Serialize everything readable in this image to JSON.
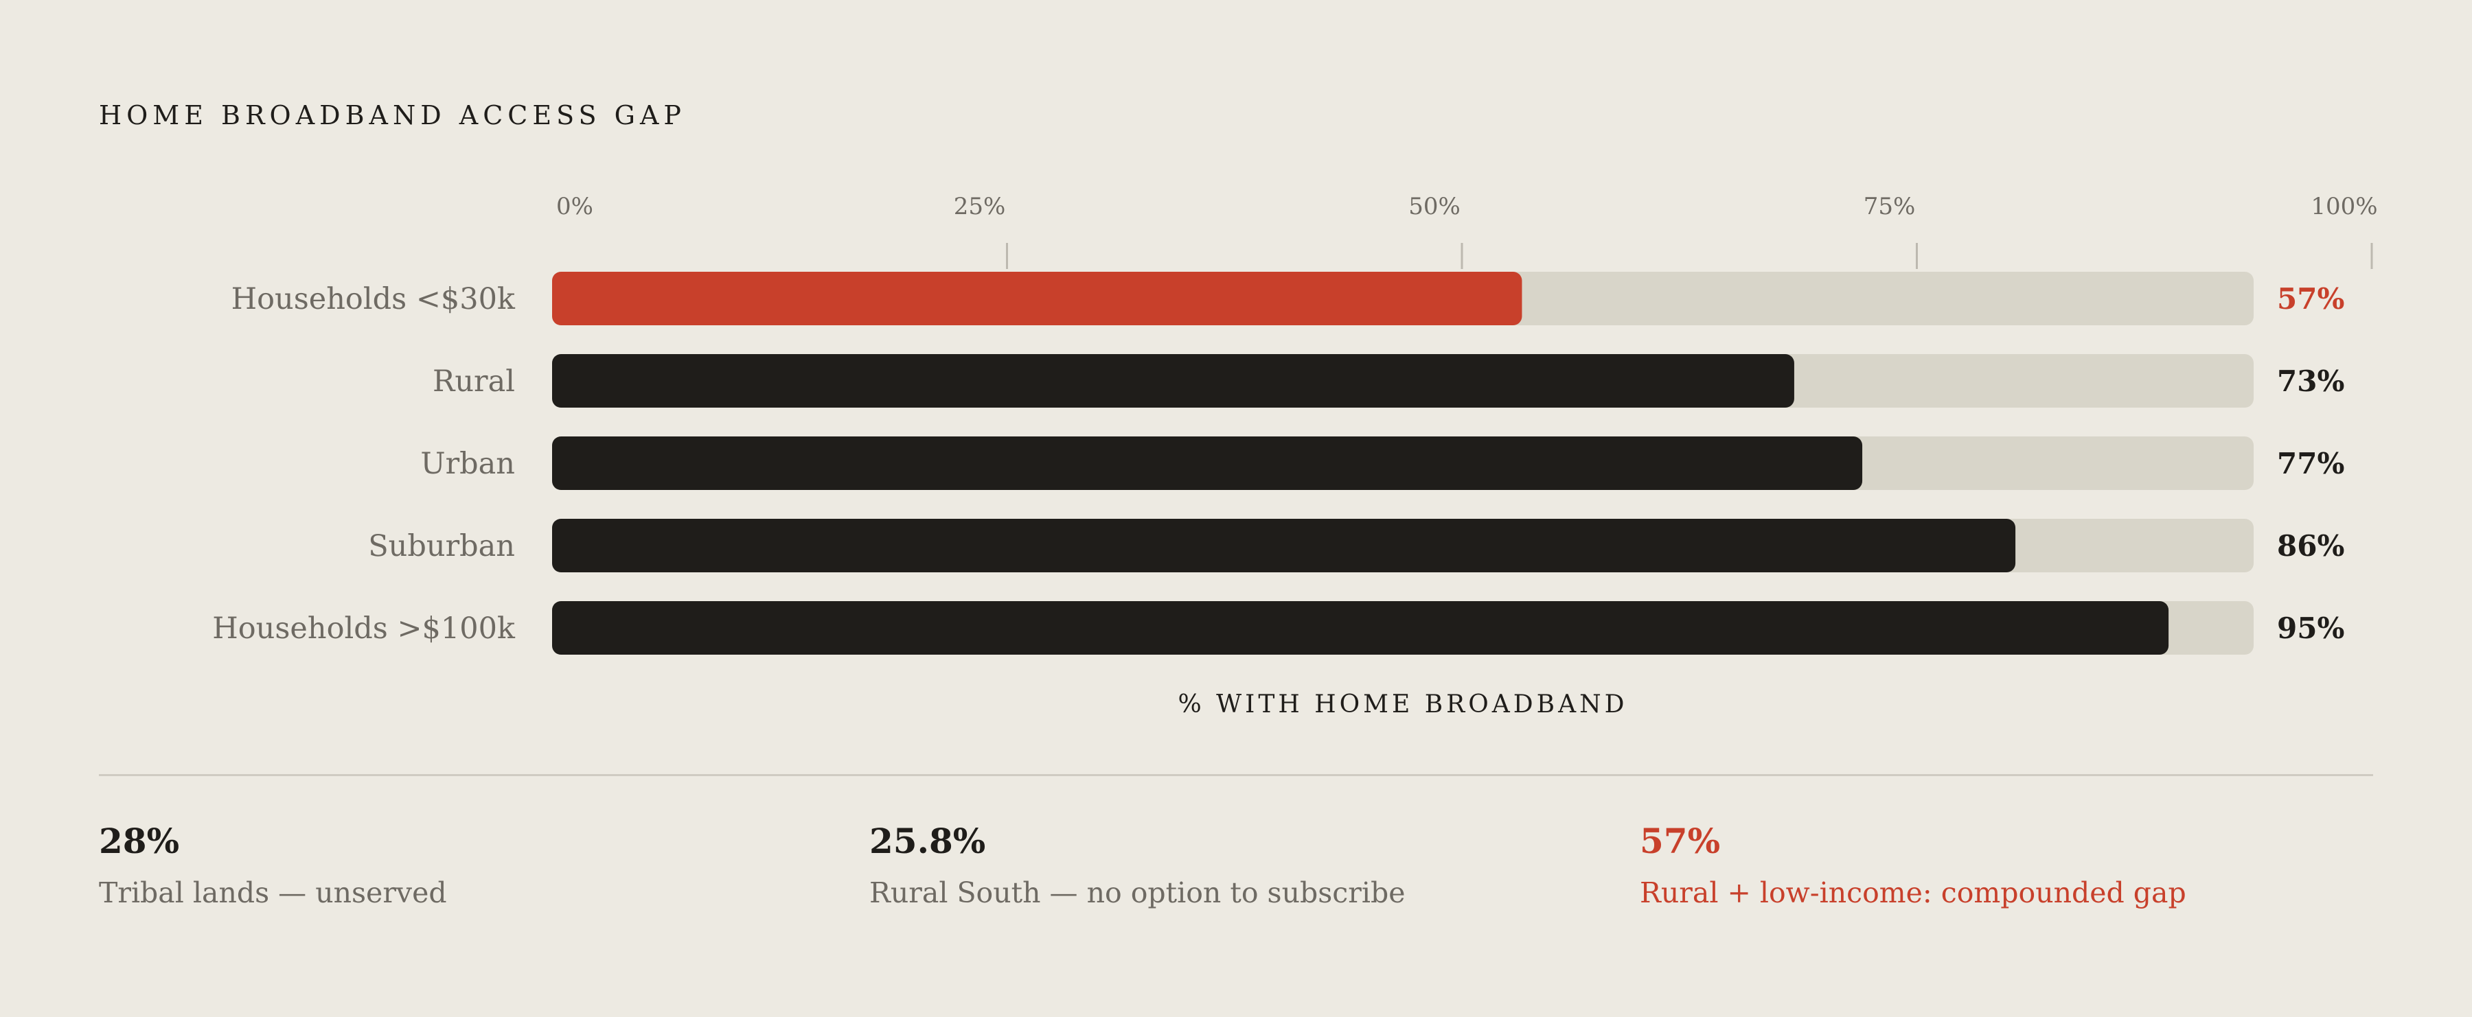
{
  "title": "HOME BROADBAND ACCESS GAP",
  "colors": {
    "background": "#edeae2",
    "track": "#d8d5c9",
    "bar_default": "#1f1d1a",
    "bar_highlight": "#c8402b",
    "text_muted": "#6e6a63",
    "text_dark": "#1f1d1a"
  },
  "chart_data": {
    "type": "bar",
    "orientation": "horizontal",
    "categories": [
      "Households <$30k",
      "Rural",
      "Urban",
      "Suburban",
      "Households >$100k"
    ],
    "values": [
      57,
      73,
      77,
      86,
      95
    ],
    "value_labels": [
      "57%",
      "73%",
      "77%",
      "86%",
      "95%"
    ],
    "highlight_index": 0,
    "xlim": [
      0,
      100
    ],
    "xticks": [
      0,
      25,
      50,
      75,
      100
    ],
    "xtick_labels": [
      "0%",
      "25%",
      "50%",
      "75%",
      "100%"
    ],
    "xlabel": "% WITH HOME BROADBAND",
    "ylabel": "",
    "grid": false,
    "tick_position": "top"
  },
  "stats": [
    {
      "value": "28%",
      "label": "Tribal lands — unserved",
      "highlight": false
    },
    {
      "value": "25.8%",
      "label": "Rural South — no option to subscribe",
      "highlight": false
    },
    {
      "value": "57%",
      "label": "Rural + low-income: compounded gap",
      "highlight": true
    }
  ]
}
